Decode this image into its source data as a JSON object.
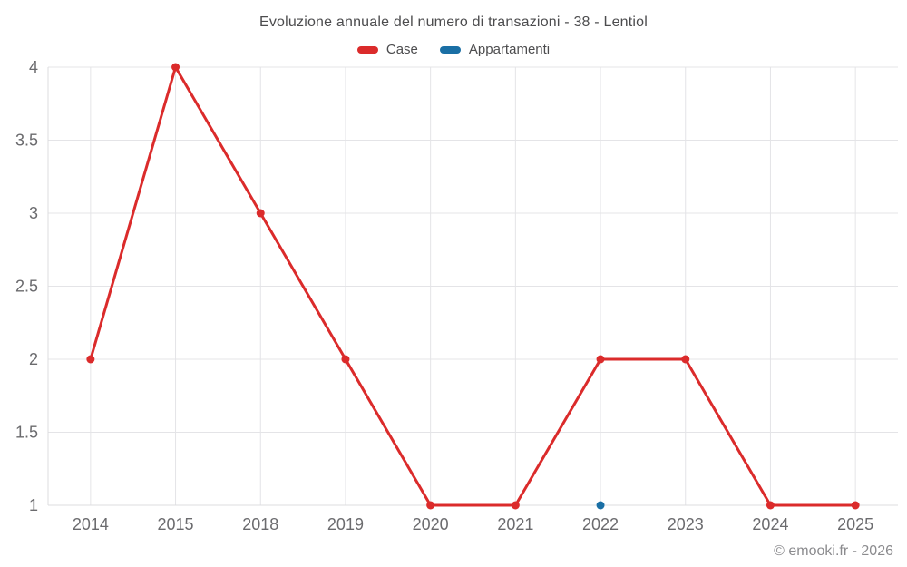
{
  "chart_data": {
    "type": "line",
    "title": "Evoluzione annuale del numero di transazioni - 38 - Lentiol",
    "categories": [
      "2014",
      "2015",
      "2018",
      "2019",
      "2020",
      "2021",
      "2022",
      "2023",
      "2024",
      "2025"
    ],
    "series": [
      {
        "name": "Case",
        "color": "#db2b2b",
        "values": [
          2,
          4,
          3,
          2,
          1,
          1,
          2,
          2,
          1,
          1
        ]
      },
      {
        "name": "Appartamenti",
        "color": "#1a6fa5",
        "values": [
          null,
          null,
          null,
          null,
          null,
          null,
          1,
          null,
          null,
          null
        ]
      }
    ],
    "yticks": [
      1,
      1.5,
      2,
      2.5,
      3,
      3.5,
      4
    ],
    "ylim": [
      1,
      4
    ],
    "xlabel": "",
    "ylabel": "",
    "grid": true,
    "legend_position": "top",
    "gridline_color": "#e4e4e7",
    "axis_line_color": "#dcdcdf",
    "axis_label_color": "#6b6b6e"
  },
  "watermark": "© emooki.fr - 2026"
}
